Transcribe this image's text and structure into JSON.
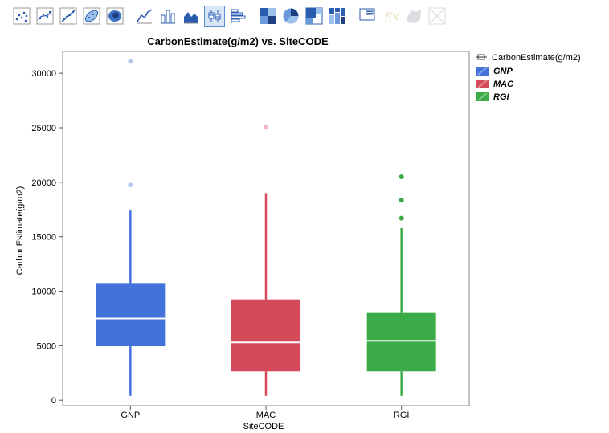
{
  "toolbar": {
    "buttons": [
      {
        "name": "points-icon",
        "group": 0,
        "state": "normal"
      },
      {
        "name": "smoother-icon",
        "group": 0,
        "state": "normal"
      },
      {
        "name": "line-of-fit-icon",
        "group": 0,
        "state": "normal"
      },
      {
        "name": "ellipse-icon",
        "group": 0,
        "state": "normal"
      },
      {
        "name": "contour-icon",
        "group": 0,
        "state": "normal"
      },
      {
        "name": "line-chart-icon",
        "group": 1,
        "state": "normal"
      },
      {
        "name": "bar-chart-icon",
        "group": 1,
        "state": "normal"
      },
      {
        "name": "area-chart-icon",
        "group": 1,
        "state": "normal"
      },
      {
        "name": "box-plot-icon",
        "group": 1,
        "state": "selected"
      },
      {
        "name": "histogram-icon",
        "group": 1,
        "state": "normal"
      },
      {
        "name": "heatmap-icon",
        "group": 2,
        "state": "normal"
      },
      {
        "name": "pie-chart-icon",
        "group": 2,
        "state": "normal"
      },
      {
        "name": "treemap-icon",
        "group": 2,
        "state": "normal"
      },
      {
        "name": "mosaic-icon",
        "group": 2,
        "state": "normal"
      },
      {
        "name": "caption-box-icon",
        "group": 3,
        "state": "normal"
      },
      {
        "name": "formula-icon",
        "group": 3,
        "state": "disabled"
      },
      {
        "name": "map-shapes-icon",
        "group": 3,
        "state": "disabled"
      },
      {
        "name": "parallel-icon",
        "group": 3,
        "state": "disabled"
      }
    ]
  },
  "chart_data": {
    "type": "box",
    "title": "CarbonEstimate(g/m2) vs. SiteCODE",
    "xlabel": "SiteCODE",
    "ylabel": "CarbonEstimate(g/m2)",
    "ylim": [
      -500,
      32000
    ],
    "yticks": [
      0,
      5000,
      10000,
      15000,
      20000,
      25000,
      30000
    ],
    "categories": [
      "GNP",
      "MAC",
      "RGI"
    ],
    "series": [
      {
        "name": "GNP",
        "color": "#4472db",
        "outlier_color": "#b8c9ee",
        "whisker_low": 400,
        "q1": 4950,
        "median": 7500,
        "q3": 10750,
        "whisker_high": 17400,
        "outliers": [
          19750,
          31100
        ]
      },
      {
        "name": "MAC",
        "color": "#d44a5a",
        "outlier_color": "#f0b8c0",
        "whisker_low": 400,
        "q1": 2650,
        "median": 5300,
        "q3": 9250,
        "whisker_high": 19000,
        "outliers": [
          25050
        ]
      },
      {
        "name": "RGI",
        "color": "#3bab47",
        "outlier_color": "#3bab47",
        "whisker_low": 400,
        "q1": 2650,
        "median": 5450,
        "q3": 8000,
        "whisker_high": 15800,
        "outliers": [
          16700,
          18350,
          20500
        ]
      }
    ],
    "legend": {
      "position": "right",
      "header": "CarbonEstimate(g/m2)",
      "entries": [
        "GNP",
        "MAC",
        "RGI"
      ]
    },
    "grid": false
  }
}
